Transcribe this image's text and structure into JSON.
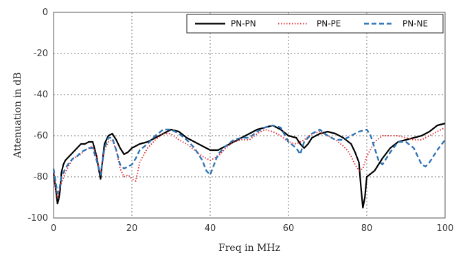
{
  "chart_data": {
    "type": "line",
    "xlabel": "Freq in MHz",
    "ylabel": "Attenuation in dB",
    "xlim": [
      0,
      100
    ],
    "ylim": [
      -100,
      0
    ],
    "x_ticks": [
      0,
      20,
      40,
      60,
      80,
      100
    ],
    "y_ticks": [
      0,
      -20,
      -40,
      -60,
      -80,
      -100
    ],
    "grid": "horizontal and vertical, dotted",
    "legend_position": "top-right",
    "series": [
      {
        "name": "PN-PN",
        "color": "#000000",
        "style": "solid",
        "x": [
          0,
          0.5,
          1,
          1.3,
          1.7,
          2,
          2.5,
          3,
          4,
          5,
          6,
          7,
          8,
          9,
          10,
          11,
          11.5,
          12,
          12.5,
          13,
          14,
          15,
          16,
          17,
          18,
          19,
          20,
          22,
          24,
          26,
          28,
          30,
          32,
          34,
          36,
          38,
          40,
          42,
          44,
          46,
          48,
          50,
          52,
          54,
          56,
          58,
          60,
          62,
          63,
          64,
          65,
          66,
          68,
          70,
          72,
          74,
          76,
          77,
          78,
          78.5,
          79,
          79.5,
          80,
          82,
          84,
          86,
          88,
          90,
          92,
          94,
          96,
          98,
          100
        ],
        "y": [
          -78,
          -85,
          -93,
          -91,
          -86,
          -78,
          -74,
          -72,
          -70,
          -68,
          -66,
          -64,
          -64,
          -63,
          -63,
          -70,
          -76,
          -81,
          -72,
          -64,
          -60,
          -59,
          -62,
          -66,
          -69,
          -68,
          -66,
          -64,
          -63,
          -61,
          -59,
          -57,
          -58,
          -61,
          -63,
          -65,
          -67,
          -67,
          -65,
          -63,
          -61,
          -59,
          -57,
          -56,
          -55,
          -57,
          -60,
          -61,
          -64,
          -66,
          -64,
          -61,
          -59,
          -58,
          -59,
          -61,
          -64,
          -68,
          -73,
          -85,
          -95,
          -90,
          -80,
          -77,
          -71,
          -66,
          -63,
          -62,
          -61,
          -60,
          -58,
          -55,
          -54
        ]
      },
      {
        "name": "PN-PE",
        "color": "#e0333a",
        "style": "dotted",
        "x": [
          0,
          0.5,
          1,
          1.5,
          2,
          3,
          4,
          5,
          6,
          7,
          8,
          9,
          10,
          11,
          12,
          13,
          14,
          15,
          16,
          17,
          18,
          19,
          20,
          21,
          22,
          24,
          26,
          28,
          30,
          32,
          34,
          36,
          38,
          40,
          42,
          44,
          46,
          48,
          50,
          52,
          54,
          56,
          58,
          60,
          62,
          64,
          66,
          68,
          70,
          72,
          74,
          75,
          76,
          77,
          78,
          79,
          80,
          82,
          84,
          86,
          88,
          90,
          92,
          94,
          96,
          98,
          100
        ],
        "y": [
          -77,
          -85,
          -90,
          -86,
          -83,
          -78,
          -74,
          -71,
          -70,
          -69,
          -67,
          -66,
          -65,
          -70,
          -79,
          -67,
          -63,
          -62,
          -67,
          -76,
          -80,
          -79,
          -81,
          -82,
          -73,
          -66,
          -62,
          -59,
          -59,
          -62,
          -64,
          -67,
          -70,
          -72,
          -70,
          -66,
          -63,
          -62,
          -62,
          -59,
          -57,
          -58,
          -60,
          -63,
          -64,
          -62,
          -59,
          -58,
          -60,
          -62,
          -65,
          -67,
          -70,
          -74,
          -77,
          -76,
          -70,
          -63,
          -60,
          -60,
          -60,
          -61,
          -62,
          -62,
          -60,
          -58,
          -56
        ]
      },
      {
        "name": "PN-NE",
        "color": "#2f74b5",
        "style": "dashed",
        "x": [
          0,
          0.5,
          1,
          1.5,
          2,
          3,
          4,
          5,
          6,
          7,
          8,
          9,
          10,
          11,
          12,
          13,
          14,
          15,
          16,
          17,
          18,
          19,
          20,
          21,
          22,
          24,
          26,
          28,
          30,
          32,
          34,
          36,
          38,
          39,
          40,
          41,
          42,
          44,
          46,
          48,
          50,
          52,
          54,
          56,
          58,
          60,
          62,
          63,
          64,
          66,
          68,
          70,
          72,
          74,
          76,
          78,
          80,
          81,
          82,
          83,
          84,
          86,
          88,
          90,
          92,
          93,
          94,
          95,
          96,
          98,
          100
        ],
        "y": [
          -76,
          -82,
          -88,
          -86,
          -80,
          -76,
          -73,
          -71,
          -70,
          -68,
          -67,
          -66,
          -66,
          -72,
          -79,
          -66,
          -61,
          -61,
          -67,
          -74,
          -76,
          -75,
          -74,
          -71,
          -67,
          -64,
          -60,
          -57,
          -57,
          -59,
          -62,
          -66,
          -72,
          -77,
          -79,
          -74,
          -69,
          -65,
          -62,
          -61,
          -61,
          -58,
          -56,
          -55,
          -56,
          -63,
          -66,
          -69,
          -63,
          -59,
          -57,
          -60,
          -62,
          -62,
          -60,
          -58,
          -57,
          -60,
          -66,
          -72,
          -74,
          -68,
          -63,
          -63,
          -66,
          -70,
          -74,
          -75,
          -73,
          -67,
          -62
        ]
      }
    ]
  }
}
